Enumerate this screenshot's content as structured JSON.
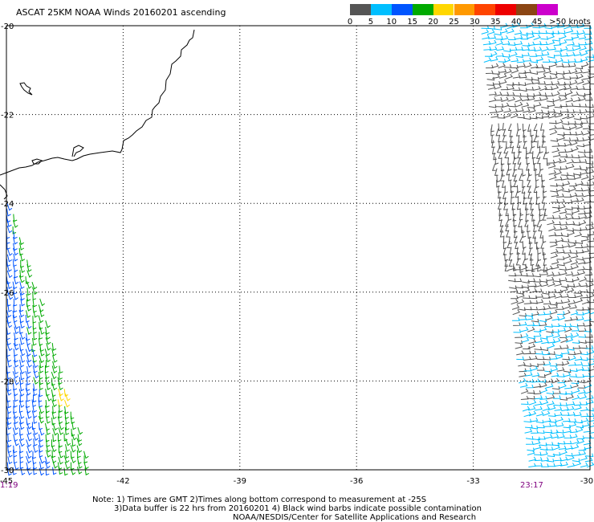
{
  "title": "ASCAT 25KM NOAA Winds 20160201 ascending",
  "legend": {
    "colors": [
      "#555555",
      "#00bfff",
      "#0055ff",
      "#00aa00",
      "#ffd700",
      "#ff9900",
      "#ff4400",
      "#ee0000",
      "#8b4513",
      "#cc00cc"
    ],
    "labels": [
      "0",
      "5",
      "10",
      "15",
      "20",
      "25",
      "30",
      "35",
      "40",
      "45",
      ">50 knots"
    ],
    "unit": "knots"
  },
  "map": {
    "lon_ticks": [
      "-45",
      "-42",
      "-39",
      "-36",
      "-33",
      "-30"
    ],
    "lat_ticks": [
      "-20",
      "-22",
      "-24",
      "-26",
      "-28",
      "-30"
    ],
    "lon_range": [
      -45,
      -30
    ],
    "lat_range": [
      -30,
      -20
    ],
    "grid": "dotted",
    "start_time": "1:19",
    "end_time": "23:17"
  },
  "notes": {
    "line1": "Note: 1) Times are GMT 2)Times along bottom correspond to measurement at -25S",
    "line2": "3)Data buffer is 22 hrs from 20160201 4) Black wind barbs indicate possible contamination",
    "line3": "NOAA/NESDIS/Center for Satellite Applications and Research"
  }
}
